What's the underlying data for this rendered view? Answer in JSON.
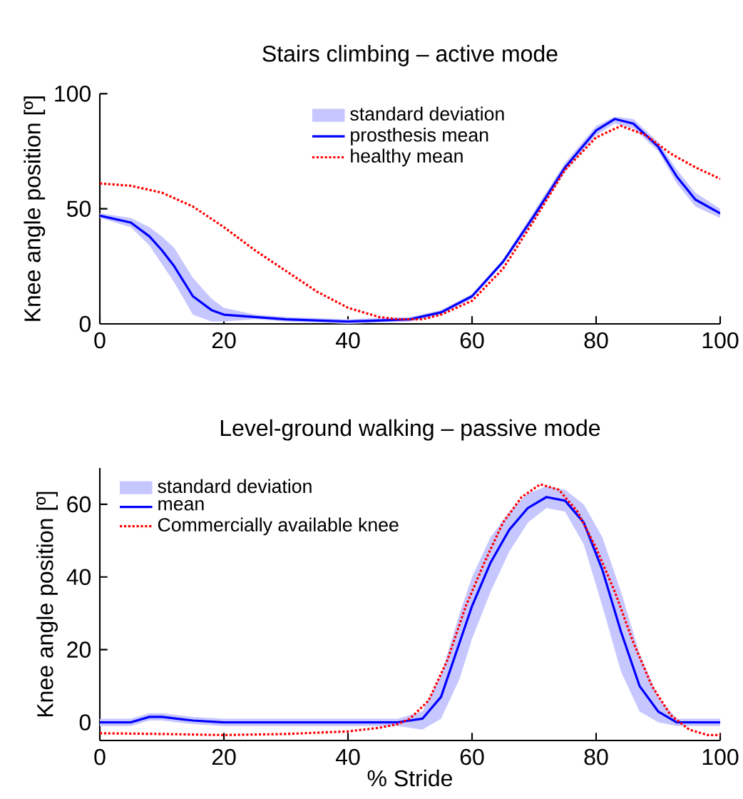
{
  "chart_data": [
    {
      "type": "line",
      "title": "Stairs climbing – active mode",
      "ylabel": "Knee angle position [º]",
      "xlim": [
        0,
        100
      ],
      "ylim": [
        0,
        100
      ],
      "xticks": [
        0,
        20,
        40,
        60,
        80,
        100
      ],
      "yticks": [
        0,
        50,
        100
      ],
      "grid": false,
      "legend": "top",
      "annotations": [
        "standard deviation"
      ],
      "series": [
        {
          "name": "prosthesis mean",
          "color": "#0000ff",
          "line_style": "solid",
          "x": [
            0,
            5,
            8,
            10,
            12,
            15,
            18,
            20,
            25,
            30,
            40,
            50,
            55,
            60,
            65,
            70,
            75,
            80,
            83,
            86,
            90,
            93,
            96,
            100
          ],
          "values": [
            47,
            44,
            38,
            32,
            25,
            12,
            6,
            4,
            3,
            2,
            1,
            2,
            5,
            12,
            27,
            47,
            68,
            84,
            89,
            87,
            77,
            64,
            54,
            48
          ],
          "lower": [
            46,
            42,
            34,
            26,
            18,
            4,
            1,
            1,
            2,
            1,
            0,
            1,
            4,
            11,
            26,
            45,
            66,
            82,
            87,
            85,
            75,
            61,
            51,
            46
          ],
          "upper": [
            48,
            46,
            42,
            38,
            33,
            20,
            11,
            7,
            4,
            3,
            2,
            3,
            6,
            13,
            28,
            49,
            70,
            86,
            90,
            89,
            79,
            67,
            57,
            50
          ]
        },
        {
          "name": "healthy mean",
          "color": "#ff0000",
          "line_style": "dotted",
          "x": [
            0,
            5,
            10,
            15,
            20,
            25,
            30,
            35,
            40,
            45,
            48,
            52,
            55,
            60,
            65,
            70,
            75,
            80,
            84,
            88,
            92,
            96,
            100
          ],
          "values": [
            61,
            60,
            57,
            51,
            42,
            32,
            23,
            14,
            7,
            3,
            2,
            2,
            4,
            10,
            24,
            45,
            67,
            81,
            86,
            82,
            74,
            68,
            63
          ]
        }
      ]
    },
    {
      "type": "line",
      "title": "Level-ground walking – passive mode",
      "xlabel": "% Stride",
      "ylabel": "Knee angle position [º]",
      "xlim": [
        0,
        100
      ],
      "ylim": [
        -5,
        70
      ],
      "xticks": [
        0,
        20,
        40,
        60,
        80,
        100
      ],
      "yticks": [
        0,
        20,
        40,
        60
      ],
      "grid": false,
      "legend": "top left",
      "annotations": [
        "standard deviation"
      ],
      "series": [
        {
          "name": "mean",
          "color": "#0000ff",
          "line_style": "solid",
          "x": [
            0,
            5,
            8,
            10,
            15,
            20,
            30,
            40,
            48,
            52,
            55,
            58,
            60,
            63,
            66,
            69,
            72,
            75,
            78,
            81,
            84,
            87,
            90,
            93,
            97,
            100
          ],
          "values": [
            0,
            0,
            1.5,
            1.5,
            0.5,
            0,
            0,
            0,
            0,
            1,
            7,
            22,
            32,
            44,
            53,
            59,
            62,
            61,
            55,
            42,
            25,
            10,
            3,
            0,
            0,
            0
          ],
          "lower": [
            -1,
            -1,
            0.5,
            0.5,
            -0.5,
            -1,
            -1,
            -1,
            -1,
            -2,
            1,
            12,
            23,
            36,
            47,
            55,
            59,
            58,
            49,
            32,
            14,
            3,
            0,
            -1,
            -1,
            -1
          ],
          "upper": [
            1,
            1,
            2.5,
            2.5,
            1.5,
            1,
            1,
            1,
            1,
            3,
            13,
            30,
            40,
            51,
            58,
            63,
            65,
            64,
            60,
            51,
            36,
            19,
            7,
            1,
            1,
            1
          ]
        },
        {
          "name": "Commercially available knee",
          "color": "#ff0000",
          "line_style": "dotted",
          "x": [
            0,
            10,
            20,
            30,
            40,
            45,
            48,
            50,
            53,
            56,
            59,
            62,
            65,
            68,
            71,
            74,
            77,
            80,
            83,
            86,
            89,
            92,
            95,
            98,
            100
          ],
          "values": [
            -3,
            -3.2,
            -3.5,
            -3.2,
            -2.5,
            -1.5,
            -0.5,
            1,
            6,
            17,
            32,
            44,
            55,
            62,
            65.5,
            64,
            58,
            48,
            36,
            22,
            10,
            2,
            -2,
            -3.5,
            -3.5
          ]
        }
      ]
    }
  ]
}
